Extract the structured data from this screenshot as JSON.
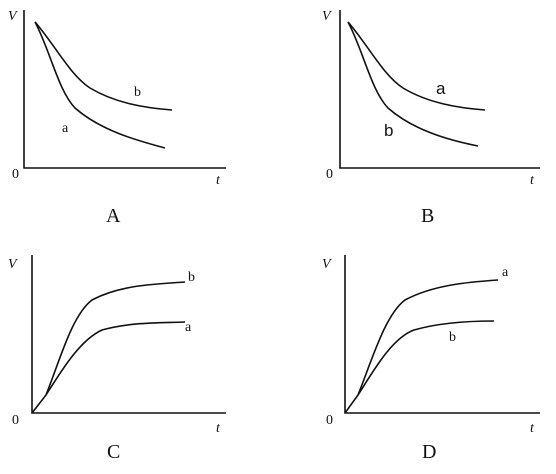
{
  "panels": [
    {
      "label": "A",
      "y_axis": "V",
      "x_axis": "t",
      "origin": "0",
      "curves": [
        {
          "label": "b"
        },
        {
          "label": "a"
        }
      ]
    },
    {
      "label": "B",
      "y_axis": "V",
      "x_axis": "t",
      "origin": "0",
      "curves": [
        {
          "label": "a"
        },
        {
          "label": "b"
        }
      ]
    },
    {
      "label": "C",
      "y_axis": "V",
      "x_axis": "t",
      "origin": "0",
      "curves": [
        {
          "label": "b"
        },
        {
          "label": "a"
        }
      ]
    },
    {
      "label": "D",
      "y_axis": "V",
      "x_axis": "t",
      "origin": "0",
      "curves": [
        {
          "label": "a"
        },
        {
          "label": "b"
        }
      ]
    }
  ]
}
